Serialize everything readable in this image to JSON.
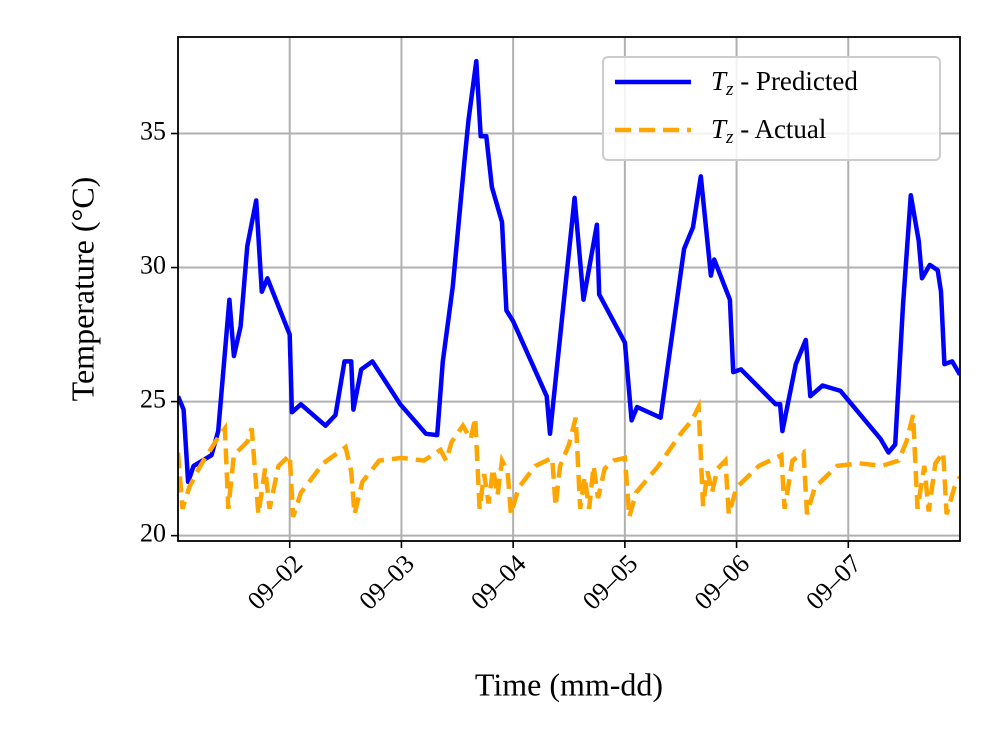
{
  "chart_data": {
    "type": "line",
    "xlabel": "Time (mm-dd)",
    "ylabel": "Temperature (°C)",
    "xlim": [
      1,
      8
    ],
    "ylim": [
      19.8,
      38.6
    ],
    "xticks": [
      {
        "value": 2,
        "label": "09–02"
      },
      {
        "value": 3,
        "label": "09–03"
      },
      {
        "value": 4,
        "label": "09–04"
      },
      {
        "value": 5,
        "label": "09–05"
      },
      {
        "value": 6,
        "label": "09–06"
      },
      {
        "value": 7,
        "label": "09–07"
      }
    ],
    "yticks": [
      20,
      25,
      30,
      35
    ],
    "grid": true,
    "legend": "upper right",
    "series": [
      {
        "name": "Tz - Predicted",
        "color": "#0000ff",
        "style": "solid",
        "x": [
          1.0,
          1.05,
          1.09,
          1.14,
          1.3,
          1.36,
          1.46,
          1.5,
          1.56,
          1.62,
          1.7,
          1.75,
          1.8,
          2.0,
          2.02,
          2.1,
          2.32,
          2.41,
          2.49,
          2.55,
          2.57,
          2.64,
          2.74,
          2.99,
          3.22,
          3.32,
          3.37,
          3.46,
          3.56,
          3.6,
          3.67,
          3.71,
          3.76,
          3.81,
          3.9,
          3.94,
          4.0,
          4.3,
          4.33,
          4.55,
          4.63,
          4.75,
          4.77,
          5.0,
          5.06,
          5.11,
          5.32,
          5.53,
          5.61,
          5.68,
          5.77,
          5.8,
          5.94,
          5.97,
          6.04,
          6.35,
          6.39,
          6.41,
          6.53,
          6.62,
          6.66,
          6.77,
          6.93,
          7.29,
          7.36,
          7.42,
          7.49,
          7.56,
          7.63,
          7.66,
          7.73,
          7.8,
          7.83,
          7.86,
          7.93,
          8.0
        ],
        "values": [
          25.2,
          24.7,
          22.0,
          22.6,
          23.0,
          23.9,
          28.8,
          26.7,
          27.8,
          30.8,
          32.5,
          29.1,
          29.6,
          27.5,
          24.6,
          24.9,
          24.1,
          24.5,
          26.5,
          26.5,
          24.7,
          26.2,
          26.5,
          24.9,
          23.8,
          23.75,
          26.5,
          29.3,
          33.8,
          35.5,
          37.7,
          34.9,
          34.9,
          33.0,
          31.7,
          28.4,
          28.0,
          25.2,
          23.8,
          32.6,
          28.8,
          31.6,
          29.0,
          27.2,
          24.3,
          24.8,
          24.4,
          30.7,
          31.5,
          33.4,
          29.7,
          30.3,
          28.8,
          26.1,
          26.2,
          24.9,
          24.9,
          23.9,
          26.4,
          27.3,
          25.2,
          25.6,
          25.4,
          23.6,
          23.1,
          23.4,
          28.6,
          32.7,
          31.0,
          29.6,
          30.1,
          29.9,
          29.1,
          26.4,
          26.5,
          26.0
        ]
      },
      {
        "name": "Tz - Actual",
        "color": "#ffa500",
        "style": "dashed",
        "x": [
          1.0,
          1.04,
          1.1,
          1.2,
          1.35,
          1.42,
          1.45,
          1.5,
          1.62,
          1.66,
          1.72,
          1.78,
          1.82,
          1.9,
          2.0,
          2.03,
          2.1,
          2.3,
          2.5,
          2.55,
          2.58,
          2.65,
          2.8,
          3.0,
          3.2,
          3.35,
          3.4,
          3.45,
          3.5,
          3.55,
          3.62,
          3.66,
          3.7,
          3.74,
          3.78,
          3.82,
          3.86,
          3.9,
          3.95,
          3.98,
          4.05,
          4.2,
          4.35,
          4.38,
          4.42,
          4.5,
          4.56,
          4.6,
          4.64,
          4.68,
          4.72,
          4.76,
          4.82,
          4.9,
          5.0,
          5.04,
          5.1,
          5.3,
          5.5,
          5.6,
          5.66,
          5.7,
          5.74,
          5.78,
          5.83,
          5.9,
          5.93,
          6.0,
          6.2,
          6.4,
          6.43,
          6.5,
          6.6,
          6.63,
          6.7,
          6.9,
          7.1,
          7.3,
          7.45,
          7.52,
          7.58,
          7.62,
          7.68,
          7.72,
          7.78,
          7.85,
          7.88,
          7.95,
          8.0
        ],
        "values": [
          23.1,
          21.0,
          21.8,
          22.6,
          23.6,
          24.0,
          21.0,
          23.0,
          23.5,
          24.0,
          20.8,
          22.5,
          21.0,
          22.6,
          23.0,
          20.7,
          21.6,
          22.7,
          23.3,
          22.4,
          20.8,
          22.0,
          22.8,
          22.9,
          22.8,
          23.2,
          22.8,
          23.5,
          23.8,
          24.1,
          23.6,
          24.4,
          21.0,
          22.3,
          21.2,
          22.5,
          21.5,
          22.8,
          22.4,
          20.8,
          21.8,
          22.6,
          22.9,
          21.1,
          22.6,
          23.4,
          24.4,
          21.0,
          22.2,
          21.0,
          22.6,
          21.4,
          22.5,
          22.8,
          22.9,
          20.7,
          21.6,
          22.6,
          23.8,
          24.3,
          24.8,
          21.1,
          22.4,
          21.6,
          22.5,
          22.8,
          20.8,
          21.8,
          22.6,
          23.0,
          21.0,
          22.8,
          23.1,
          20.8,
          21.8,
          22.6,
          22.7,
          22.6,
          22.8,
          23.5,
          24.5,
          21.0,
          22.6,
          20.9,
          22.7,
          23.1,
          20.8,
          21.8,
          22.2
        ]
      }
    ]
  }
}
